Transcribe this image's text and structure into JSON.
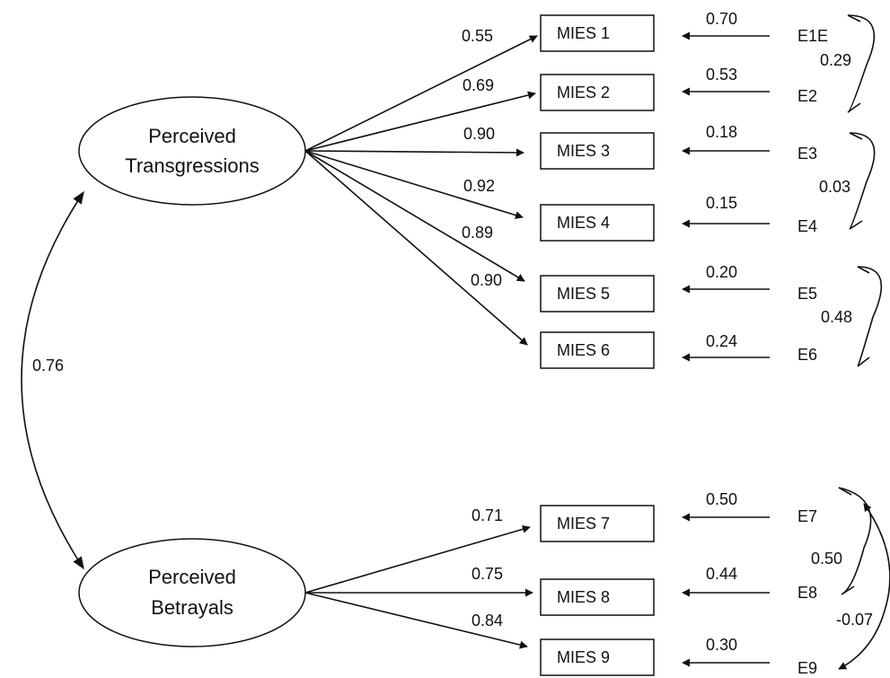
{
  "latents": {
    "transgressions": [
      "Perceived",
      "Transgressions"
    ],
    "betrayals": [
      "Perceived",
      "Betrayals"
    ]
  },
  "factor_correlation": "0.76",
  "indicators": [
    {
      "name": "MIES 1",
      "loading": "0.55",
      "error": "E1E",
      "error_weight": "0.70"
    },
    {
      "name": "MIES 2",
      "loading": "0.69",
      "error": "E2",
      "error_weight": "0.53"
    },
    {
      "name": "MIES 3",
      "loading": "0.90",
      "error": "E3",
      "error_weight": "0.18"
    },
    {
      "name": "MIES 4",
      "loading": "0.92",
      "error": "E4",
      "error_weight": "0.15"
    },
    {
      "name": "MIES 5",
      "loading": "0.89",
      "error": "E5",
      "error_weight": "0.20"
    },
    {
      "name": "MIES 6",
      "loading": "0.90",
      "error": "E6",
      "error_weight": "0.24"
    },
    {
      "name": "MIES 7",
      "loading": "0.71",
      "error": "E7",
      "error_weight": "0.50"
    },
    {
      "name": "MIES 8",
      "loading": "0.75",
      "error": "E8",
      "error_weight": "0.44"
    },
    {
      "name": "MIES 9",
      "loading": "0.84",
      "error": "E9",
      "error_weight": "0.30"
    }
  ],
  "error_covariances": [
    {
      "between": [
        "E1E",
        "E2"
      ],
      "value": "0.29"
    },
    {
      "between": [
        "E3",
        "E4"
      ],
      "value": "0.03"
    },
    {
      "between": [
        "E5",
        "E6"
      ],
      "value": "0.48"
    },
    {
      "between": [
        "E7",
        "E8"
      ],
      "value": "0.50"
    },
    {
      "between": [
        "E7",
        "E9"
      ],
      "value": "-0.07"
    }
  ]
}
